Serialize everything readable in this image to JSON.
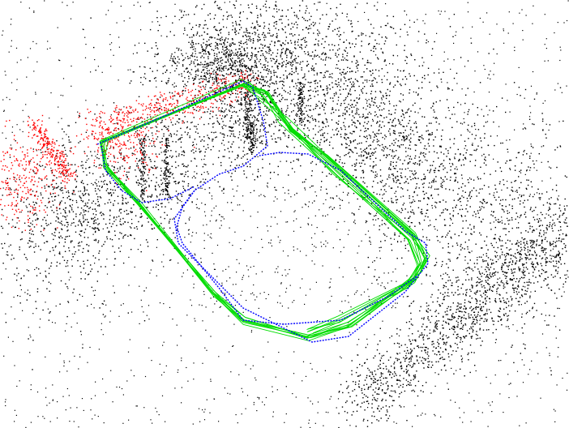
{
  "view": {
    "background": "#ffffff"
  },
  "colors": {
    "map_points": "#000000",
    "current_keyframe_points": "#ff0000",
    "trajectory_primary": "#0000ff",
    "trajectory_covisibility": "#00dd00"
  }
}
